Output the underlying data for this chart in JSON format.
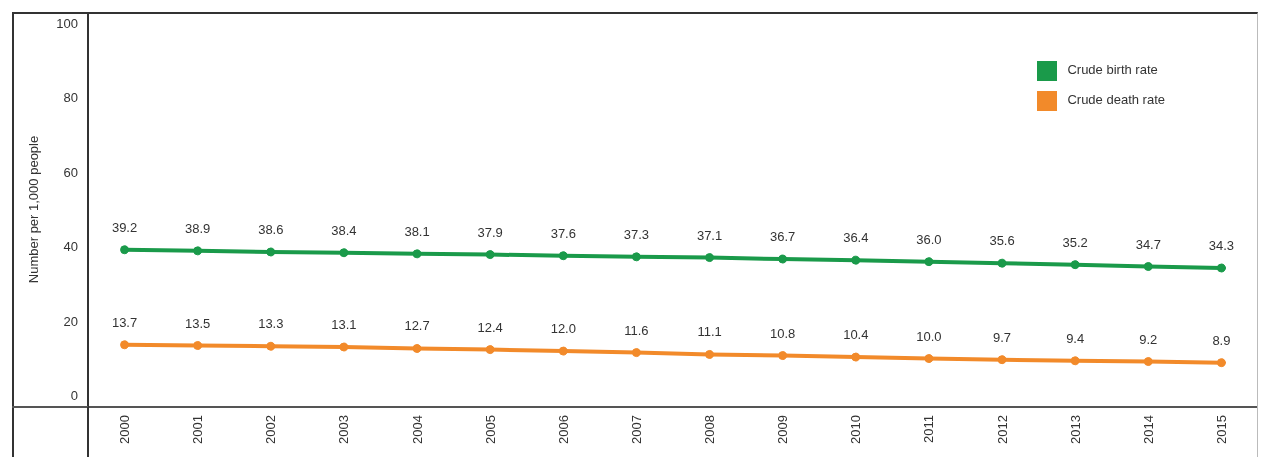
{
  "chart_data": {
    "type": "line",
    "ylabel": "Number per 1,000 people",
    "categories": [
      "2000",
      "2001",
      "2002",
      "2003",
      "2004",
      "2005",
      "2006",
      "2007",
      "2008",
      "2009",
      "2010",
      "2011",
      "2012",
      "2013",
      "2014",
      "2015"
    ],
    "series": [
      {
        "name": "Crude birth rate",
        "color": "#1a9a4a",
        "values": [
          39.2,
          38.9,
          38.6,
          38.4,
          38.1,
          37.9,
          37.6,
          37.3,
          37.1,
          36.7,
          36.4,
          36.0,
          35.6,
          35.2,
          34.7,
          34.3
        ],
        "value_labels": [
          "39.2",
          "38.9",
          "38.6",
          "38.4",
          "38.1",
          "37.9",
          "37.6",
          "37.3",
          "37.1",
          "36.7",
          "36.4",
          "36.0",
          "35.6",
          "35.2",
          "34.7",
          "34.3"
        ]
      },
      {
        "name": "Crude death rate",
        "color": "#f28a2a",
        "values": [
          13.7,
          13.5,
          13.3,
          13.1,
          12.7,
          12.4,
          12.0,
          11.6,
          11.1,
          10.8,
          10.4,
          10.0,
          9.7,
          9.4,
          9.2,
          8.9
        ],
        "value_labels": [
          "13.7",
          "13.5",
          "13.3",
          "13.1",
          "12.7",
          "12.4",
          "12.0",
          "11.6",
          "11.1",
          "10.8",
          "10.4",
          "10.0",
          "9.7",
          "9.4",
          "9.2",
          "8.9"
        ]
      }
    ],
    "ylim": [
      -3,
      103
    ],
    "yticks": [
      0,
      20,
      40,
      60,
      80,
      100
    ],
    "grid": false,
    "legend": "top right",
    "marker": "circle",
    "line_style": "solid"
  }
}
